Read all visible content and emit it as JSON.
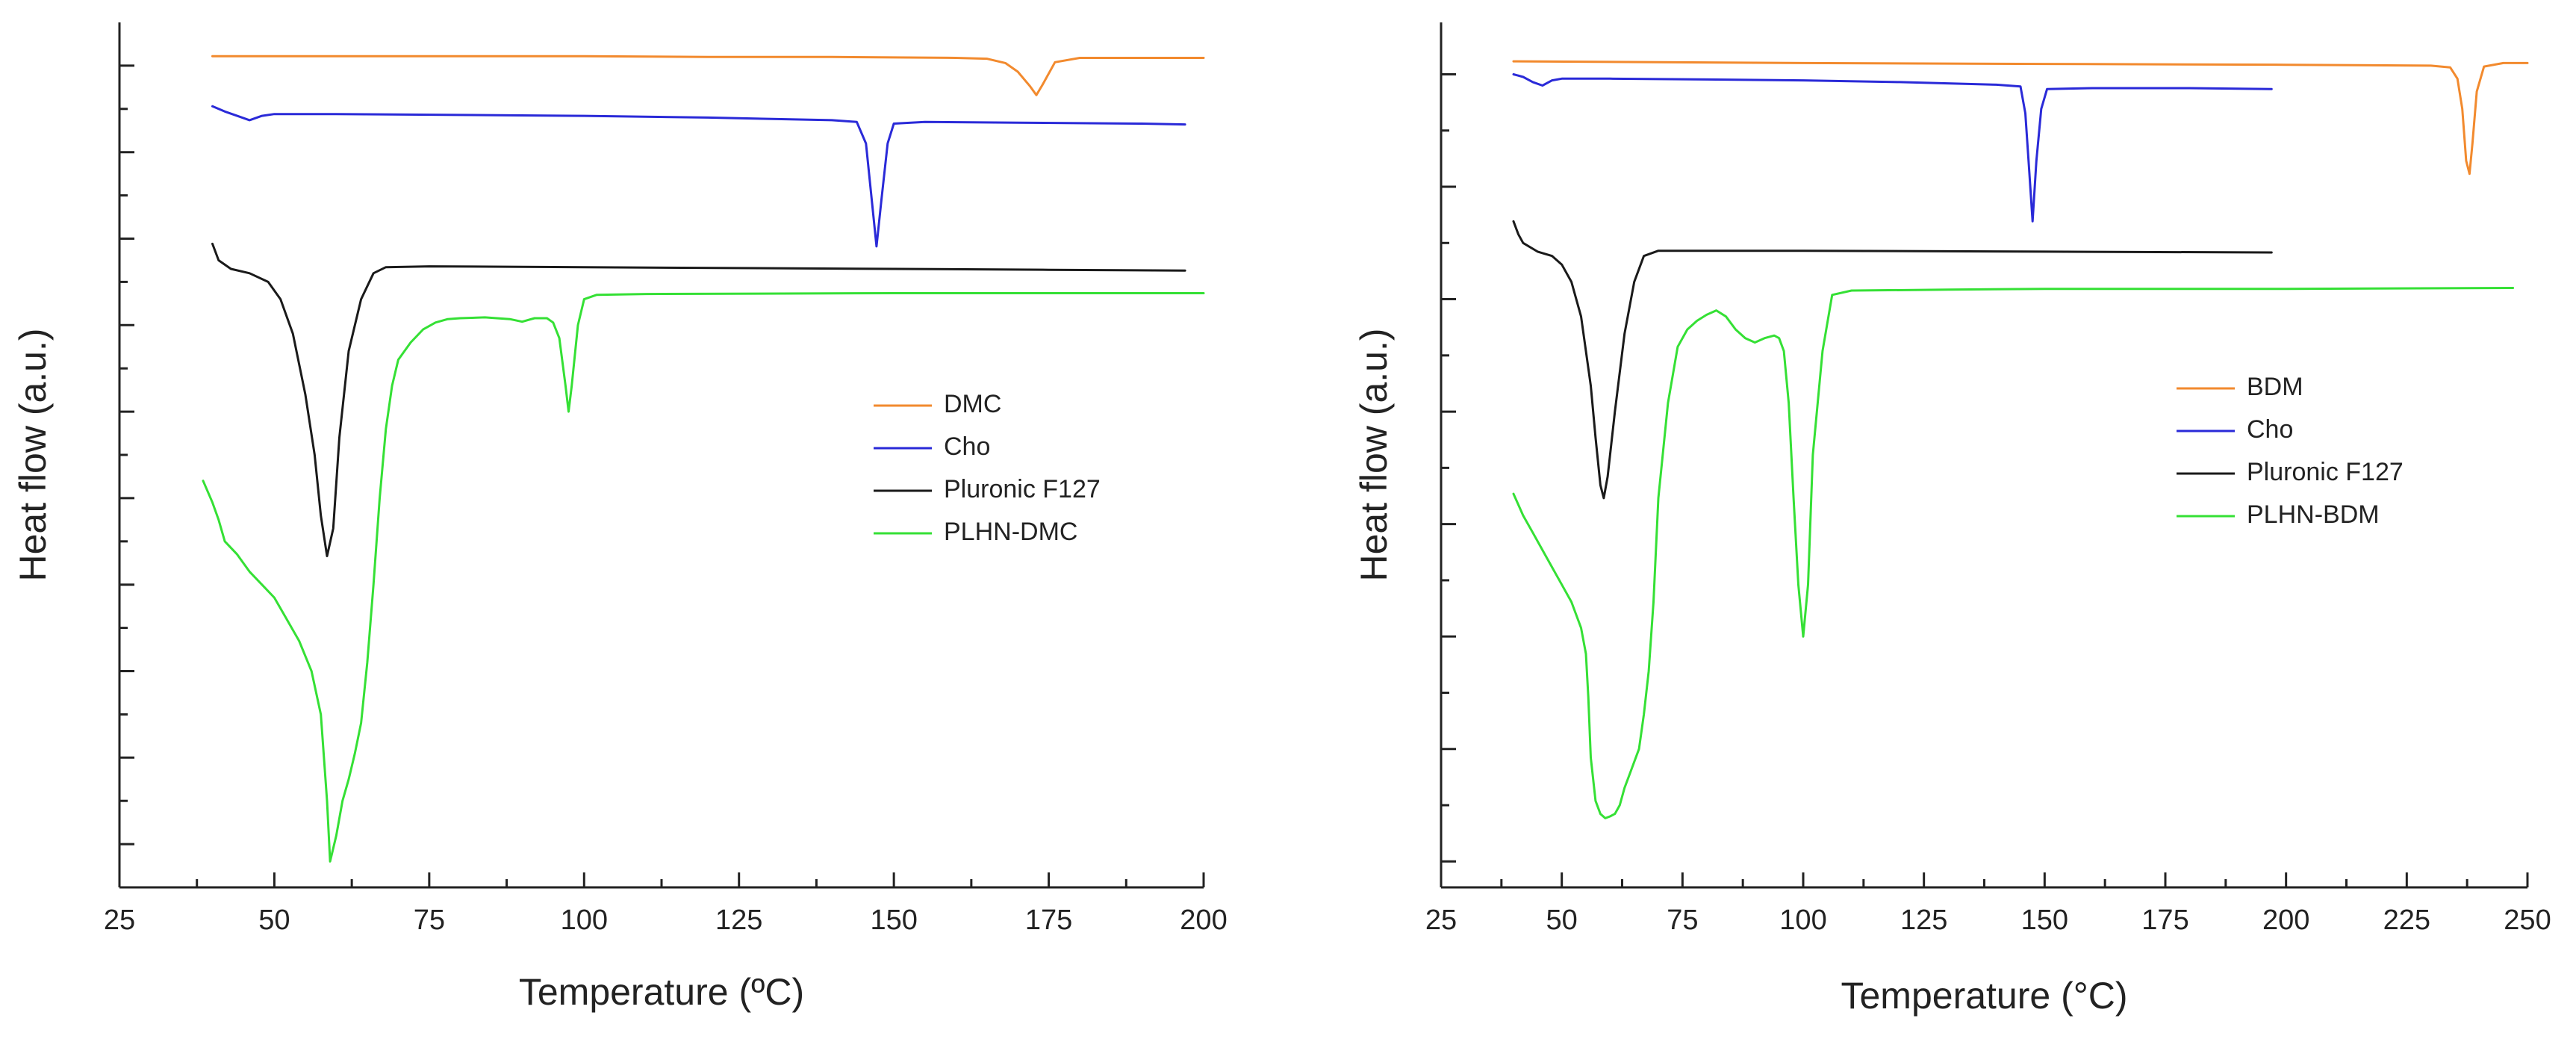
{
  "colors": {
    "orange": "#f28a2e",
    "blue": "#2a2ad8",
    "black": "#1a1a1a",
    "green": "#35e035",
    "axis": "#222222",
    "background": "#ffffff"
  },
  "chart_data": [
    {
      "type": "line",
      "title": "",
      "xlabel": "Temperature (ºC)",
      "ylabel": "Heat flow (a.u.)",
      "xlim": [
        25,
        200
      ],
      "ylim": [
        0,
        100
      ],
      "x_ticks": [
        25,
        50,
        75,
        100,
        125,
        150,
        175,
        200
      ],
      "y_ticks_unlabeled": [
        5,
        15,
        25,
        35,
        45,
        55,
        65,
        75,
        85,
        95
      ],
      "legend_position": "center-right",
      "grid": false,
      "series": [
        {
          "name": "DMC",
          "color_key": "orange",
          "points": [
            [
              40,
              96.1
            ],
            [
              60,
              96.1
            ],
            [
              80,
              96.1
            ],
            [
              100,
              96.1
            ],
            [
              120,
              96.0
            ],
            [
              140,
              96.0
            ],
            [
              160,
              95.9
            ],
            [
              165,
              95.8
            ],
            [
              168,
              95.3
            ],
            [
              170,
              94.3
            ],
            [
              172,
              92.6
            ],
            [
              173,
              91.6
            ],
            [
              174,
              92.8
            ],
            [
              176,
              95.4
            ],
            [
              180,
              95.9
            ],
            [
              190,
              95.9
            ],
            [
              200,
              95.9
            ]
          ]
        },
        {
          "name": "Cho",
          "color_key": "blue",
          "points": [
            [
              40,
              90.3
            ],
            [
              42,
              89.7
            ],
            [
              44,
              89.2
            ],
            [
              46,
              88.7
            ],
            [
              48,
              89.2
            ],
            [
              50,
              89.4
            ],
            [
              60,
              89.4
            ],
            [
              80,
              89.3
            ],
            [
              100,
              89.2
            ],
            [
              120,
              89.0
            ],
            [
              140,
              88.7
            ],
            [
              144,
              88.5
            ],
            [
              145.5,
              86.0
            ],
            [
              146.5,
              79.0
            ],
            [
              147.2,
              74.1
            ],
            [
              148,
              79.5
            ],
            [
              149,
              86.0
            ],
            [
              150,
              88.3
            ],
            [
              155,
              88.5
            ],
            [
              170,
              88.4
            ],
            [
              190,
              88.3
            ],
            [
              197,
              88.2
            ]
          ]
        },
        {
          "name": "Pluronic F127",
          "color_key": "black",
          "points": [
            [
              40,
              74.4
            ],
            [
              41,
              72.5
            ],
            [
              43,
              71.5
            ],
            [
              46,
              71.0
            ],
            [
              49,
              70.0
            ],
            [
              51,
              68.0
            ],
            [
              53,
              64.0
            ],
            [
              55,
              57.0
            ],
            [
              56.5,
              50.0
            ],
            [
              57.5,
              43.0
            ],
            [
              58.5,
              38.3
            ],
            [
              59.5,
              41.5
            ],
            [
              60.5,
              52.0
            ],
            [
              62,
              62.0
            ],
            [
              64,
              68.0
            ],
            [
              66,
              71.0
            ],
            [
              68,
              71.7
            ],
            [
              75,
              71.8
            ],
            [
              100,
              71.7
            ],
            [
              125,
              71.6
            ],
            [
              150,
              71.5
            ],
            [
              175,
              71.4
            ],
            [
              197,
              71.3
            ]
          ]
        },
        {
          "name": "PLHN-DMC",
          "color_key": "green",
          "points": [
            [
              38.5,
              47.0
            ],
            [
              40,
              44.5
            ],
            [
              41,
              42.5
            ],
            [
              42,
              40.0
            ],
            [
              44,
              38.5
            ],
            [
              46,
              36.5
            ],
            [
              48,
              35.0
            ],
            [
              50,
              33.5
            ],
            [
              52,
              31.0
            ],
            [
              54,
              28.5
            ],
            [
              56,
              25.0
            ],
            [
              57.5,
              20.0
            ],
            [
              58.5,
              10.0
            ],
            [
              59,
              3.0
            ],
            [
              60,
              6.0
            ],
            [
              61,
              10.0
            ],
            [
              62,
              12.5
            ],
            [
              63,
              15.5
            ],
            [
              64,
              19.0
            ],
            [
              65,
              26.0
            ],
            [
              66,
              35.0
            ],
            [
              67,
              45.0
            ],
            [
              68,
              53.0
            ],
            [
              69,
              58.0
            ],
            [
              70,
              61.0
            ],
            [
              72,
              63.0
            ],
            [
              74,
              64.5
            ],
            [
              76,
              65.3
            ],
            [
              78,
              65.7
            ],
            [
              80,
              65.8
            ],
            [
              84,
              65.9
            ],
            [
              88,
              65.7
            ],
            [
              90,
              65.4
            ],
            [
              92,
              65.8
            ],
            [
              94,
              65.8
            ],
            [
              95,
              65.3
            ],
            [
              96,
              63.5
            ],
            [
              97,
              58.0
            ],
            [
              97.5,
              55.0
            ],
            [
              98,
              58.0
            ],
            [
              99,
              65.0
            ],
            [
              100,
              68.0
            ],
            [
              102,
              68.5
            ],
            [
              110,
              68.6
            ],
            [
              150,
              68.7
            ],
            [
              200,
              68.7
            ]
          ]
        }
      ]
    },
    {
      "type": "line",
      "title": "",
      "xlabel": "Temperature (°C)",
      "ylabel": "Heat flow (a.u.)",
      "xlim": [
        25,
        250
      ],
      "ylim": [
        0,
        100
      ],
      "x_ticks": [
        25,
        50,
        75,
        100,
        125,
        150,
        175,
        200,
        225,
        250
      ],
      "y_ticks_unlabeled": [
        3,
        16,
        29,
        42,
        55,
        68,
        81,
        94
      ],
      "legend_position": "center-right",
      "grid": false,
      "series": [
        {
          "name": "BDM",
          "color_key": "orange",
          "points": [
            [
              40,
              95.5
            ],
            [
              70,
              95.4
            ],
            [
              100,
              95.3
            ],
            [
              150,
              95.2
            ],
            [
              200,
              95.1
            ],
            [
              230,
              95.0
            ],
            [
              234,
              94.8
            ],
            [
              235.5,
              93.5
            ],
            [
              236.5,
              90.0
            ],
            [
              237.3,
              84.0
            ],
            [
              238,
              82.5
            ],
            [
              238.6,
              86.0
            ],
            [
              239.5,
              92.0
            ],
            [
              241,
              94.9
            ],
            [
              245,
              95.3
            ],
            [
              250,
              95.3
            ]
          ]
        },
        {
          "name": "Cho",
          "color_key": "blue",
          "points": [
            [
              40,
              94.0
            ],
            [
              42,
              93.7
            ],
            [
              44,
              93.1
            ],
            [
              46,
              92.7
            ],
            [
              48,
              93.3
            ],
            [
              50,
              93.5
            ],
            [
              60,
              93.5
            ],
            [
              80,
              93.4
            ],
            [
              100,
              93.3
            ],
            [
              120,
              93.1
            ],
            [
              140,
              92.8
            ],
            [
              145,
              92.6
            ],
            [
              146,
              89.5
            ],
            [
              146.8,
              83.0
            ],
            [
              147.5,
              77.0
            ],
            [
              148.3,
              84.0
            ],
            [
              149.3,
              90.0
            ],
            [
              150.5,
              92.3
            ],
            [
              160,
              92.4
            ],
            [
              180,
              92.4
            ],
            [
              197,
              92.3
            ]
          ]
        },
        {
          "name": "Pluronic F127",
          "color_key": "black",
          "points": [
            [
              40,
              77.0
            ],
            [
              41,
              75.5
            ],
            [
              42,
              74.5
            ],
            [
              45,
              73.5
            ],
            [
              48,
              73.0
            ],
            [
              50,
              72.0
            ],
            [
              52,
              70.0
            ],
            [
              54,
              66.0
            ],
            [
              56,
              58.0
            ],
            [
              57,
              52.0
            ],
            [
              58,
              46.5
            ],
            [
              58.7,
              45.0
            ],
            [
              59.5,
              47.5
            ],
            [
              61,
              55.0
            ],
            [
              63,
              64.0
            ],
            [
              65,
              70.0
            ],
            [
              67,
              73.0
            ],
            [
              70,
              73.6
            ],
            [
              100,
              73.6
            ],
            [
              150,
              73.5
            ],
            [
              197,
              73.4
            ]
          ]
        },
        {
          "name": "PLHN-BDM",
          "color_key": "green",
          "points": [
            [
              40,
              45.5
            ],
            [
              42,
              43.0
            ],
            [
              44,
              41.0
            ],
            [
              46,
              39.0
            ],
            [
              48,
              37.0
            ],
            [
              50,
              35.0
            ],
            [
              52,
              33.0
            ],
            [
              54,
              30.0
            ],
            [
              55,
              27.0
            ],
            [
              55.5,
              22.0
            ],
            [
              56,
              15.0
            ],
            [
              57,
              10.0
            ],
            [
              58,
              8.5
            ],
            [
              59,
              8.0
            ],
            [
              60,
              8.2
            ],
            [
              61,
              8.5
            ],
            [
              62,
              9.5
            ],
            [
              63,
              11.5
            ],
            [
              64,
              13.0
            ],
            [
              66,
              16.0
            ],
            [
              67,
              20.0
            ],
            [
              68,
              25.0
            ],
            [
              69,
              33.0
            ],
            [
              70,
              45.0
            ],
            [
              72,
              56.0
            ],
            [
              74,
              62.5
            ],
            [
              76,
              64.5
            ],
            [
              78,
              65.5
            ],
            [
              80,
              66.2
            ],
            [
              82,
              66.7
            ],
            [
              84,
              66.0
            ],
            [
              86,
              64.5
            ],
            [
              88,
              63.5
            ],
            [
              90,
              63.0
            ],
            [
              92,
              63.5
            ],
            [
              94,
              63.8
            ],
            [
              95,
              63.5
            ],
            [
              96,
              62.0
            ],
            [
              97,
              56.0
            ],
            [
              98,
              45.0
            ],
            [
              99,
              35.0
            ],
            [
              100,
              29.0
            ],
            [
              101,
              35.0
            ],
            [
              102,
              50.0
            ],
            [
              104,
              62.0
            ],
            [
              106,
              68.5
            ],
            [
              110,
              69.0
            ],
            [
              130,
              69.1
            ],
            [
              150,
              69.2
            ],
            [
              200,
              69.2
            ],
            [
              247,
              69.3
            ]
          ]
        }
      ]
    }
  ]
}
